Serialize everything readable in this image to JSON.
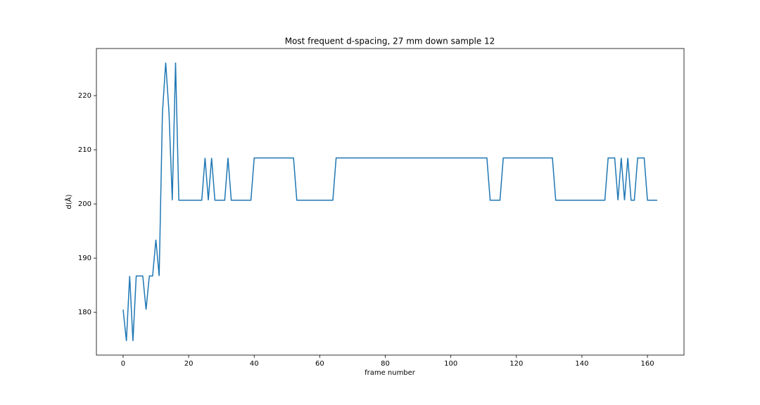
{
  "chart_data": {
    "type": "line",
    "title": "Most frequent d-spacing, 27 mm down sample 12",
    "x_label": "frame number",
    "y_label": "d(Å)",
    "x": [
      0,
      1,
      2,
      3,
      4,
      5,
      6,
      7,
      8,
      9,
      10,
      11,
      12,
      13,
      14,
      15,
      16,
      17,
      18,
      19,
      20,
      21,
      22,
      23,
      24,
      25,
      26,
      27,
      28,
      29,
      30,
      31,
      32,
      33,
      34,
      35,
      36,
      37,
      38,
      39,
      40,
      41,
      42,
      43,
      44,
      45,
      46,
      47,
      48,
      49,
      50,
      51,
      52,
      53,
      54,
      55,
      56,
      57,
      58,
      59,
      60,
      61,
      62,
      63,
      64,
      65,
      66,
      67,
      68,
      69,
      70,
      71,
      72,
      73,
      74,
      75,
      76,
      77,
      78,
      79,
      80,
      81,
      82,
      83,
      84,
      85,
      86,
      87,
      88,
      89,
      90,
      91,
      92,
      93,
      94,
      95,
      96,
      97,
      98,
      99,
      100,
      101,
      102,
      103,
      104,
      105,
      106,
      107,
      108,
      109,
      110,
      111,
      112,
      113,
      114,
      115,
      116,
      117,
      118,
      119,
      120,
      121,
      122,
      123,
      124,
      125,
      126,
      127,
      128,
      129,
      130,
      131,
      132,
      133,
      134,
      135,
      136,
      137,
      138,
      139,
      140,
      141,
      142,
      143,
      144,
      145,
      146,
      147,
      148,
      149,
      150,
      151,
      152,
      153,
      154,
      155,
      156,
      157,
      158,
      159,
      160,
      161,
      162,
      163
    ],
    "series": [
      {
        "color": "#1f77b4",
        "values": [
          180.5,
          174.7,
          186.7,
          174.7,
          186.7,
          186.7,
          186.7,
          180.5,
          186.7,
          186.7,
          193.4,
          186.7,
          216.9,
          226.1,
          216.9,
          200.7,
          226.1,
          200.7,
          200.7,
          200.7,
          200.7,
          200.7,
          200.7,
          200.7,
          200.7,
          208.5,
          200.7,
          208.5,
          200.7,
          200.7,
          200.7,
          200.7,
          208.5,
          200.7,
          200.7,
          200.7,
          200.7,
          200.7,
          200.7,
          200.7,
          208.5,
          208.5,
          208.5,
          208.5,
          208.5,
          208.5,
          208.5,
          208.5,
          208.5,
          208.5,
          208.5,
          208.5,
          208.5,
          200.7,
          200.7,
          200.7,
          200.7,
          200.7,
          200.7,
          200.7,
          200.7,
          200.7,
          200.7,
          200.7,
          200.7,
          208.5,
          208.5,
          208.5,
          208.5,
          208.5,
          208.5,
          208.5,
          208.5,
          208.5,
          208.5,
          208.5,
          208.5,
          208.5,
          208.5,
          208.5,
          208.5,
          208.5,
          208.5,
          208.5,
          208.5,
          208.5,
          208.5,
          208.5,
          208.5,
          208.5,
          208.5,
          208.5,
          208.5,
          208.5,
          208.5,
          208.5,
          208.5,
          208.5,
          208.5,
          208.5,
          208.5,
          208.5,
          208.5,
          208.5,
          208.5,
          208.5,
          208.5,
          208.5,
          208.5,
          208.5,
          208.5,
          208.5,
          200.7,
          200.7,
          200.7,
          200.7,
          208.5,
          208.5,
          208.5,
          208.5,
          208.5,
          208.5,
          208.5,
          208.5,
          208.5,
          208.5,
          208.5,
          208.5,
          208.5,
          208.5,
          208.5,
          208.5,
          200.7,
          200.7,
          200.7,
          200.7,
          200.7,
          200.7,
          200.7,
          200.7,
          200.7,
          200.7,
          200.7,
          200.7,
          200.7,
          200.7,
          200.7,
          200.7,
          208.5,
          208.5,
          208.5,
          200.7,
          208.5,
          200.7,
          208.5,
          200.7,
          200.7,
          208.5,
          208.5,
          208.5,
          200.7,
          200.7,
          200.7,
          200.7
        ]
      }
    ],
    "xlim": [
      -8.15,
      171.15
    ],
    "ylim": [
      172.1,
      228.7
    ],
    "xticks": [
      0,
      20,
      40,
      60,
      80,
      100,
      120,
      140,
      160
    ],
    "yticks": [
      180,
      190,
      200,
      210,
      220
    ]
  }
}
